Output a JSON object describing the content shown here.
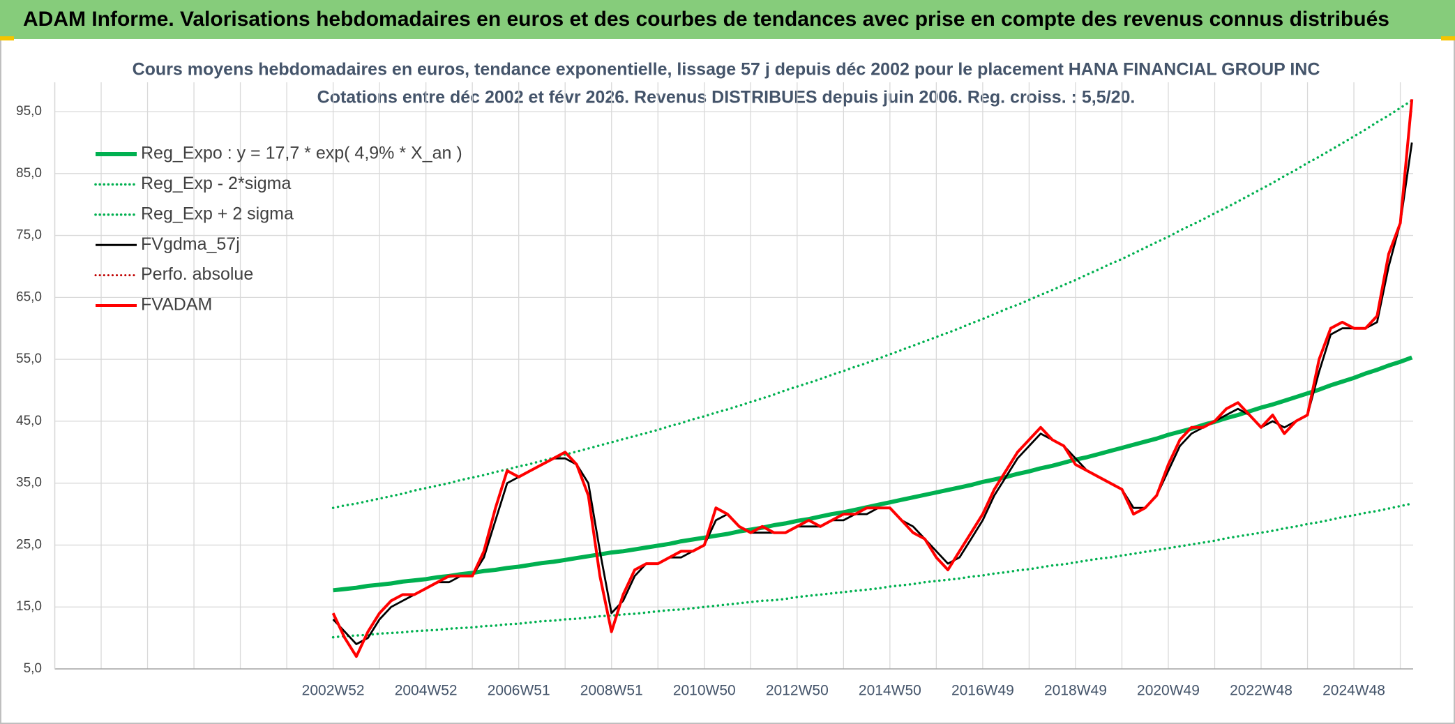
{
  "chart_data": {
    "type": "line",
    "title": "ADAM Informe. Valorisations hebdomadaires en euros et des courbes de tendances avec prise en compte des revenus connus distribués",
    "subtitle": [
      "Cours moyens hebdomadaires en euros, tendance exponentielle, lissage 57 j depuis déc 2002 pour le placement HANA FINANCIAL GROUP INC",
      "Cotations entre déc 2002 et févr 2026. Revenus DISTRIBUES depuis juin 2006. Reg. croiss. : 5,5/20."
    ],
    "categories": [
      null,
      null,
      null,
      null,
      null,
      null,
      null,
      null,
      null,
      null,
      null,
      null,
      null,
      null,
      null,
      null,
      null,
      null,
      null,
      null,
      null,
      null,
      null,
      null,
      "2002W52",
      null,
      null,
      null,
      null,
      null,
      null,
      null,
      "2004W52",
      null,
      null,
      null,
      null,
      null,
      null,
      null,
      "2006W51",
      null,
      null,
      null,
      null,
      null,
      null,
      null,
      "2008W51",
      null,
      null,
      null,
      null,
      null,
      null,
      null,
      "2010W50",
      null,
      null,
      null,
      null,
      null,
      null,
      null,
      "2012W50",
      null,
      null,
      null,
      null,
      null,
      null,
      null,
      "2014W50",
      null,
      null,
      null,
      null,
      null,
      null,
      null,
      "2016W49",
      null,
      null,
      null,
      null,
      null,
      null,
      null,
      "2018W49",
      null,
      null,
      null,
      null,
      null,
      null,
      null,
      "2020W49",
      null,
      null,
      null,
      null,
      null,
      null,
      null,
      "2022W48",
      null,
      null,
      null,
      null,
      null,
      null,
      null,
      "2024W48",
      null,
      null,
      null,
      null,
      null
    ],
    "ylim": [
      5,
      98
    ],
    "yticks": [
      {
        "value": 5,
        "label": "5,0"
      },
      {
        "value": 15,
        "label": "15,0"
      },
      {
        "value": 25,
        "label": "25,0"
      },
      {
        "value": 35,
        "label": "35,0"
      },
      {
        "value": 45,
        "label": "45,0"
      },
      {
        "value": 55,
        "label": "55,0"
      },
      {
        "value": 65,
        "label": "65,0"
      },
      {
        "value": 75,
        "label": "75,0"
      },
      {
        "value": 85,
        "label": "85,0"
      },
      {
        "value": 95,
        "label": "95,0"
      }
    ],
    "grid": true,
    "legend": "top-left",
    "series": [
      {
        "name": "Reg_Expo : y = 17,7 * exp( 4,9% *  X_an )",
        "color": "#00b050",
        "dash": false,
        "values": [
          null,
          null,
          null,
          null,
          null,
          null,
          null,
          null,
          null,
          null,
          null,
          null,
          null,
          null,
          null,
          null,
          null,
          null,
          null,
          null,
          null,
          null,
          null,
          null,
          17.7,
          17.9,
          18.1,
          18.4,
          18.6,
          18.8,
          19.1,
          19.3,
          19.5,
          19.8,
          20.0,
          20.3,
          20.5,
          20.8,
          21.0,
          21.3,
          21.5,
          21.8,
          22.1,
          22.3,
          22.6,
          22.9,
          23.2,
          23.5,
          23.8,
          24.0,
          24.3,
          24.6,
          24.9,
          25.2,
          25.6,
          25.9,
          26.2,
          26.5,
          26.8,
          27.2,
          27.5,
          27.8,
          28.2,
          28.5,
          28.9,
          29.2,
          29.6,
          30.0,
          30.3,
          30.7,
          31.1,
          31.5,
          31.9,
          32.3,
          32.7,
          33.1,
          33.5,
          33.9,
          34.3,
          34.7,
          35.2,
          35.6,
          36.0,
          36.5,
          36.9,
          37.4,
          37.8,
          38.3,
          38.8,
          39.2,
          39.7,
          40.2,
          40.7,
          41.2,
          41.7,
          42.2,
          42.8,
          43.3,
          43.8,
          44.4,
          44.9,
          45.5,
          46.0,
          46.6,
          47.2,
          47.7,
          48.3,
          48.9,
          49.5,
          50.1,
          50.8,
          51.4,
          52.0,
          52.7,
          53.3,
          54.0,
          54.6,
          55.3
        ]
      },
      {
        "name": "Reg_Exp - 2*sigma",
        "color": "#00b050",
        "dash": true,
        "values": [
          null,
          null,
          null,
          null,
          null,
          null,
          null,
          null,
          null,
          null,
          null,
          null,
          null,
          null,
          null,
          null,
          null,
          null,
          null,
          null,
          null,
          null,
          null,
          null,
          10.1,
          10.3,
          10.4,
          10.5,
          10.7,
          10.8,
          10.9,
          11.1,
          11.2,
          11.3,
          11.5,
          11.6,
          11.7,
          11.9,
          12.0,
          12.2,
          12.3,
          12.5,
          12.7,
          12.8,
          13.0,
          13.1,
          13.3,
          13.5,
          13.6,
          13.8,
          13.9,
          14.1,
          14.3,
          14.5,
          14.6,
          14.8,
          15.0,
          15.2,
          15.4,
          15.6,
          15.8,
          16.0,
          16.1,
          16.3,
          16.6,
          16.8,
          17.0,
          17.2,
          17.4,
          17.6,
          17.8,
          18.0,
          18.3,
          18.5,
          18.7,
          19.0,
          19.2,
          19.4,
          19.6,
          19.9,
          20.1,
          20.4,
          20.6,
          20.9,
          21.1,
          21.4,
          21.7,
          21.9,
          22.2,
          22.5,
          22.8,
          23.0,
          23.3,
          23.6,
          23.9,
          24.2,
          24.5,
          24.8,
          25.1,
          25.4,
          25.7,
          26.1,
          26.4,
          26.7,
          27.0,
          27.3,
          27.7,
          28.0,
          28.4,
          28.7,
          29.1,
          29.5,
          29.8,
          30.2,
          30.5,
          30.9,
          31.3,
          31.7
        ]
      },
      {
        "name": "Reg_Exp + 2 sigma",
        "color": "#00b050",
        "dash": true,
        "values": [
          null,
          null,
          null,
          null,
          null,
          null,
          null,
          null,
          null,
          null,
          null,
          null,
          null,
          null,
          null,
          null,
          null,
          null,
          null,
          null,
          null,
          null,
          null,
          null,
          31.0,
          31.4,
          31.7,
          32.1,
          32.5,
          32.9,
          33.3,
          33.8,
          34.2,
          34.6,
          35.0,
          35.5,
          35.9,
          36.3,
          36.8,
          37.2,
          37.7,
          38.1,
          38.6,
          39.1,
          39.6,
          40.1,
          40.6,
          41.1,
          41.6,
          42.1,
          42.6,
          43.1,
          43.6,
          44.2,
          44.7,
          45.3,
          45.8,
          46.4,
          46.9,
          47.5,
          48.1,
          48.7,
          49.3,
          50.0,
          50.6,
          51.2,
          51.8,
          52.5,
          53.1,
          53.8,
          54.4,
          55.1,
          55.8,
          56.5,
          57.2,
          57.9,
          58.6,
          59.3,
          60.0,
          60.8,
          61.5,
          62.3,
          63.1,
          63.8,
          64.6,
          65.4,
          66.2,
          67.0,
          67.8,
          68.7,
          69.5,
          70.4,
          71.2,
          72.1,
          73.0,
          73.9,
          74.8,
          75.8,
          76.7,
          77.6,
          78.6,
          79.5,
          80.5,
          81.5,
          82.5,
          83.5,
          84.6,
          85.6,
          86.7,
          87.7,
          88.8,
          89.9,
          91.0,
          92.1,
          93.3,
          94.4,
          95.6,
          96.8
        ]
      },
      {
        "name": "FVgdma_57j",
        "color": "#000000",
        "dash": false,
        "values": [
          null,
          null,
          null,
          null,
          null,
          null,
          null,
          null,
          null,
          null,
          null,
          null,
          null,
          null,
          null,
          null,
          null,
          null,
          null,
          null,
          null,
          null,
          null,
          null,
          13,
          11,
          9,
          10,
          13,
          15,
          16,
          17,
          18,
          19,
          19,
          20,
          20,
          23,
          29,
          35,
          36,
          37,
          38,
          39,
          39,
          38,
          35,
          24,
          14,
          16,
          20,
          22,
          22,
          23,
          23,
          24,
          25,
          29,
          30,
          28,
          27,
          27,
          27,
          27,
          28,
          28,
          28,
          29,
          29,
          30,
          30,
          31,
          31,
          29,
          28,
          26,
          24,
          22,
          23,
          26,
          29,
          33,
          36,
          39,
          41,
          43,
          42,
          41,
          39,
          37,
          36,
          35,
          34,
          31,
          31,
          33,
          37,
          41,
          43,
          44,
          45,
          46,
          47,
          46,
          44,
          45,
          44,
          45,
          46,
          53,
          59,
          60,
          60,
          60,
          61,
          70,
          77,
          90
        ]
      },
      {
        "name": "Perfo. absolue",
        "color": "#c00000",
        "dash": true,
        "values": [
          null,
          null,
          null,
          null,
          null,
          null,
          null,
          null,
          null,
          null,
          null,
          null,
          null,
          null,
          null,
          null,
          null,
          null,
          null,
          null,
          null,
          null,
          null,
          null,
          null,
          null,
          null,
          null,
          null,
          null,
          null,
          null,
          null,
          null,
          null,
          null,
          null,
          null,
          null,
          null,
          null,
          null,
          null,
          null,
          null,
          null,
          null,
          null,
          null,
          null,
          null,
          null,
          null,
          null,
          null,
          null,
          null,
          null,
          null,
          null,
          null,
          null,
          null,
          null,
          null,
          null,
          null,
          null,
          null,
          null,
          null,
          null,
          null,
          null,
          null,
          null,
          null,
          null,
          null,
          null,
          null,
          null,
          null,
          null,
          null,
          null,
          null,
          null,
          null,
          null,
          null,
          null,
          null,
          null,
          null,
          null,
          null,
          null,
          null,
          null,
          null,
          null,
          null,
          null,
          null,
          null,
          null,
          null,
          null,
          null,
          null,
          null,
          null,
          null,
          null,
          null,
          null,
          null
        ]
      },
      {
        "name": "FVADAM",
        "color": "#ff0000",
        "dash": false,
        "values": [
          null,
          null,
          null,
          null,
          null,
          null,
          null,
          null,
          null,
          null,
          null,
          null,
          null,
          null,
          null,
          null,
          null,
          null,
          null,
          null,
          null,
          null,
          null,
          null,
          14,
          10,
          7,
          11,
          14,
          16,
          17,
          17,
          18,
          19,
          20,
          20,
          20,
          24,
          31,
          37,
          36,
          37,
          38,
          39,
          40,
          38,
          33,
          20,
          11,
          17,
          21,
          22,
          22,
          23,
          24,
          24,
          25,
          31,
          30,
          28,
          27,
          28,
          27,
          27,
          28,
          29,
          28,
          29,
          30,
          30,
          31,
          31,
          31,
          29,
          27,
          26,
          23,
          21,
          24,
          27,
          30,
          34,
          37,
          40,
          42,
          44,
          42,
          41,
          38,
          37,
          36,
          35,
          34,
          30,
          31,
          33,
          38,
          42,
          44,
          44,
          45,
          47,
          48,
          46,
          44,
          46,
          43,
          45,
          46,
          55,
          60,
          61,
          60,
          60,
          62,
          72,
          77,
          97
        ]
      }
    ]
  }
}
